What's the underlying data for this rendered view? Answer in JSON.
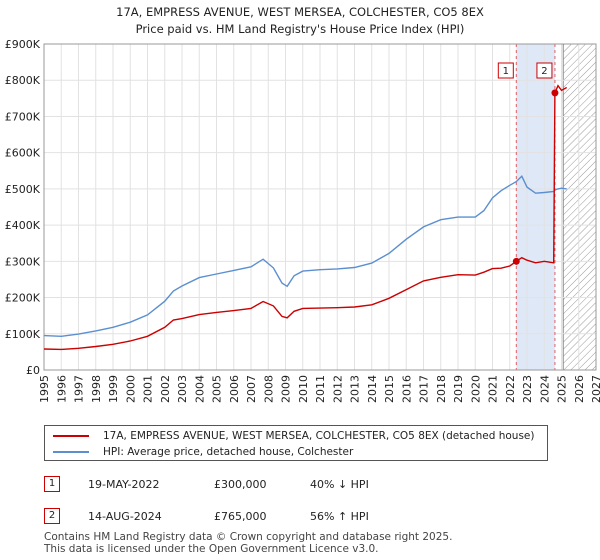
{
  "chart_data": {
    "type": "line",
    "title": "17A, EMPRESS AVENUE, WEST MERSEA, COLCHESTER, CO5 8EX",
    "subtitle": "Price paid vs. HM Land Registry's House Price Index (HPI)",
    "xlim": [
      1995,
      2027
    ],
    "ylim": [
      0,
      900000
    ],
    "x_ticks": [
      "1995",
      "1996",
      "1997",
      "1998",
      "1999",
      "2000",
      "2001",
      "2002",
      "2003",
      "2004",
      "2005",
      "2006",
      "2007",
      "2008",
      "2009",
      "2010",
      "2011",
      "2012",
      "2013",
      "2014",
      "2015",
      "2016",
      "2017",
      "2018",
      "2019",
      "2020",
      "2021",
      "2022",
      "2023",
      "2024",
      "2025",
      "2026",
      "2027"
    ],
    "y_ticks": [
      {
        "value": 0,
        "label": "£0"
      },
      {
        "value": 100000,
        "label": "£100K"
      },
      {
        "value": 200000,
        "label": "£200K"
      },
      {
        "value": 300000,
        "label": "£300K"
      },
      {
        "value": 400000,
        "label": "£400K"
      },
      {
        "value": 500000,
        "label": "£500K"
      },
      {
        "value": 600000,
        "label": "£600K"
      },
      {
        "value": 700000,
        "label": "£700K"
      },
      {
        "value": 800000,
        "label": "£800K"
      },
      {
        "value": 900000,
        "label": "£900K"
      }
    ],
    "grid": true,
    "shaded_period": [
      2022.38,
      2024.62
    ],
    "future_hatch_from": 2025.1,
    "series": [
      {
        "name": "17A, EMPRESS AVENUE, WEST MERSEA, COLCHESTER, CO5 8EX (detached house)",
        "color": "#cc0000",
        "x": [
          1995.0,
          1996.0,
          1997.0,
          1998.0,
          1999.0,
          2000.0,
          2001.0,
          2002.0,
          2002.5,
          2003.0,
          2004.0,
          2005.0,
          2006.0,
          2007.0,
          2007.7,
          2008.3,
          2008.8,
          2009.1,
          2009.5,
          2010.0,
          2011.0,
          2012.0,
          2013.0,
          2014.0,
          2015.0,
          2016.0,
          2017.0,
          2018.0,
          2019.0,
          2020.0,
          2020.5,
          2021.0,
          2021.5,
          2022.0,
          2022.38,
          2022.7,
          2023.0,
          2023.5,
          2024.0,
          2024.55,
          2024.62,
          2024.8,
          2025.0,
          2025.3
        ],
        "values": [
          58000,
          57000,
          60000,
          65000,
          71000,
          80000,
          93000,
          118000,
          138000,
          142000,
          153000,
          159000,
          164000,
          170000,
          189000,
          177000,
          148000,
          144000,
          162000,
          170000,
          171000,
          172000,
          174000,
          180000,
          198000,
          222000,
          246000,
          256000,
          263000,
          262000,
          270000,
          280000,
          281000,
          287000,
          300000,
          310000,
          303000,
          296000,
          300000,
          296000,
          765000,
          785000,
          772000,
          780000
        ]
      },
      {
        "name": "HPI: Average price, detached house, Colchester",
        "color": "#5b8fd0",
        "x": [
          1995.0,
          1996.0,
          1997.0,
          1998.0,
          1999.0,
          2000.0,
          2001.0,
          2002.0,
          2002.5,
          2003.0,
          2004.0,
          2005.0,
          2006.0,
          2007.0,
          2007.7,
          2008.3,
          2008.8,
          2009.1,
          2009.5,
          2010.0,
          2011.0,
          2012.0,
          2013.0,
          2014.0,
          2015.0,
          2016.0,
          2017.0,
          2018.0,
          2019.0,
          2020.0,
          2020.5,
          2021.0,
          2021.5,
          2022.0,
          2022.38,
          2022.7,
          2023.0,
          2023.5,
          2024.0,
          2024.55,
          2024.62,
          2024.8,
          2025.0,
          2025.3
        ],
        "values": [
          95000,
          93000,
          99000,
          108000,
          118000,
          132000,
          152000,
          190000,
          218000,
          232000,
          255000,
          265000,
          275000,
          285000,
          306000,
          282000,
          240000,
          231000,
          260000,
          273000,
          277000,
          279000,
          283000,
          295000,
          322000,
          361000,
          395000,
          415000,
          422000,
          422000,
          440000,
          475000,
          495000,
          510000,
          520000,
          535000,
          505000,
          488000,
          490000,
          493000,
          497000,
          500000,
          502000,
          500000
        ]
      }
    ],
    "sale_points": [
      {
        "marker": "1",
        "x": 2022.38,
        "value": 300000
      },
      {
        "marker": "2",
        "x": 2024.62,
        "value": 765000
      }
    ]
  },
  "legend": {
    "property_label": "17A, EMPRESS AVENUE, WEST MERSEA, COLCHESTER, CO5 8EX (detached house)",
    "hpi_label": "HPI: Average price, detached house, Colchester",
    "property_color": "#cc0000",
    "hpi_color": "#5b8fd0"
  },
  "sales": [
    {
      "marker": "1",
      "date": "19-MAY-2022",
      "price": "£300,000",
      "hpi_change": "40% ↓ HPI"
    },
    {
      "marker": "2",
      "date": "14-AUG-2024",
      "price": "£765,000",
      "hpi_change": "56% ↑ HPI"
    }
  ],
  "footer": {
    "line1": "Contains HM Land Registry data © Crown copyright and database right 2025.",
    "line2": "This data is licensed under the Open Government Licence v3.0."
  }
}
